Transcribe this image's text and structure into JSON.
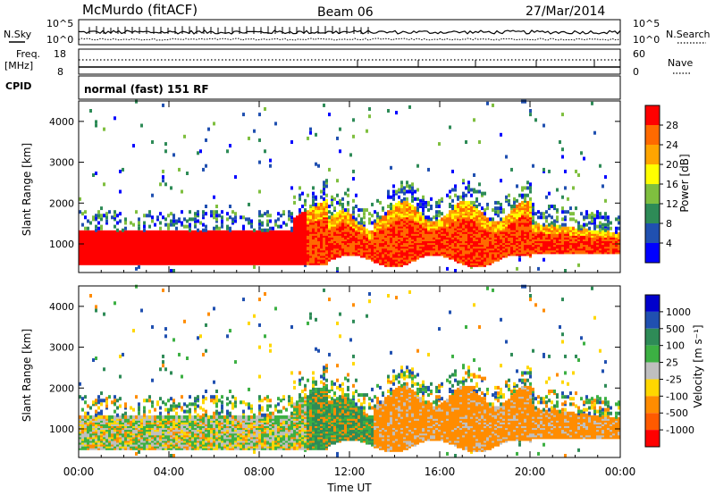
{
  "header": {
    "station": "McMurdo (fitACF)",
    "beam": "Beam 06",
    "date": "27/Mar/2014"
  },
  "status_panels": {
    "nsky_label": "N.Sky",
    "nsky_ticks": [
      "10^5",
      "10^0"
    ],
    "nsearch_label": "N.Search",
    "nsearch_ticks": [
      "10^5",
      "10^0"
    ],
    "freq_label": "Freq.",
    "freq_unit": "[MHz]",
    "freq_ticks": [
      "18",
      "8"
    ],
    "nave_label": "Nave",
    "nave_ticks": [
      "60",
      "0"
    ],
    "cpid_label": "CPID",
    "cpid_text": "normal (fast) 151 RF"
  },
  "colors": {
    "power_scale": [
      "#0000ff",
      "#2050b0",
      "#2e8b57",
      "#7fbf3f",
      "#ffff00",
      "#ffa500",
      "#ff6a00",
      "#ff0000"
    ],
    "velocity_scale": [
      "#0000cc",
      "#2050b0",
      "#2e8b57",
      "#3cb043",
      "#bfbfbf",
      "#ffd700",
      "#ff8c00",
      "#ff5a00",
      "#ff0000"
    ],
    "ground_scatter": "#bfbfbf"
  },
  "chart_data": [
    {
      "type": "heatmap",
      "name": "power",
      "ylabel": "Slant Range [km]",
      "yticks": [
        "1000",
        "2000",
        "3000",
        "4000"
      ],
      "ylim": [
        300,
        4500
      ],
      "colorbar_label": "Power [dB]",
      "colorbar_ticks": [
        "4",
        "8",
        "12",
        "16",
        "20",
        "24",
        "28"
      ],
      "colorbar_range": [
        0,
        32
      ]
    },
    {
      "type": "heatmap",
      "name": "velocity",
      "ylabel": "Slant Range [km]",
      "yticks": [
        "1000",
        "2000",
        "3000",
        "4000"
      ],
      "ylim": [
        300,
        4500
      ],
      "colorbar_label": "Velocity [m s⁻¹]",
      "colorbar_ticks": [
        "1000",
        "500",
        "100",
        "25",
        "-25",
        "-100",
        "-500",
        "-1000"
      ]
    }
  ],
  "time_axis": {
    "label": "Time UT",
    "ticks": [
      "00:00",
      "04:00",
      "08:00",
      "12:00",
      "16:00",
      "20:00",
      "00:00"
    ],
    "range_hours": [
      0,
      24
    ]
  }
}
